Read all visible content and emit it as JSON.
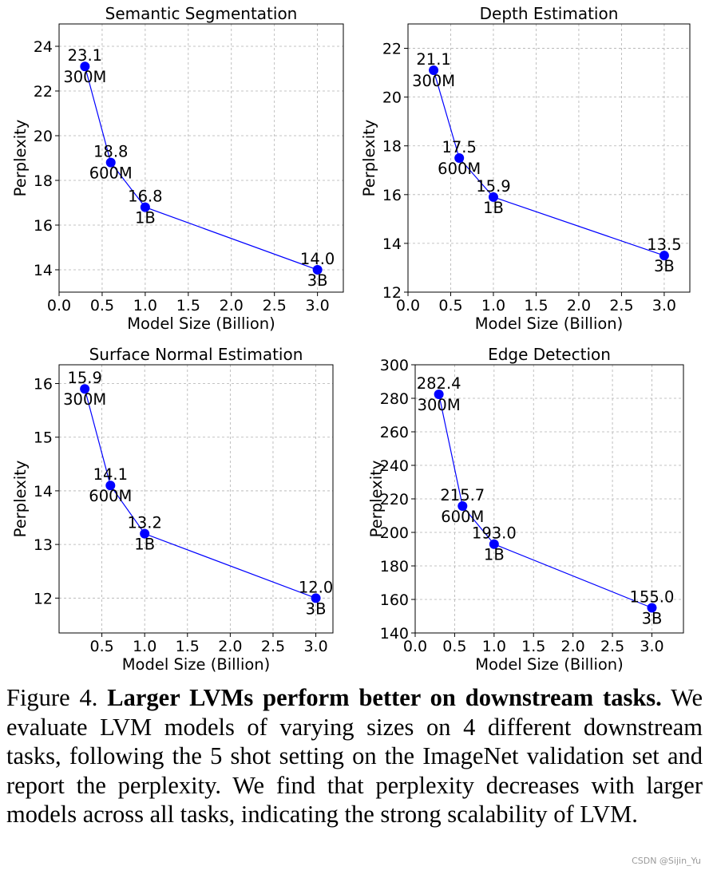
{
  "chart_data": [
    {
      "type": "line",
      "title": "Semantic Segmentation",
      "xlabel": "Model Size (Billion)",
      "ylabel": "Perplexity",
      "x": [
        0.3,
        0.6,
        1.0,
        3.0
      ],
      "values": [
        23.1,
        18.8,
        16.8,
        14.0
      ],
      "value_labels": [
        "23.1",
        "18.8",
        "16.8",
        "14.0"
      ],
      "point_labels": [
        "300M",
        "600M",
        "1B",
        "3B"
      ],
      "xlim": [
        0.0,
        3.3
      ],
      "ylim": [
        13.0,
        25.0
      ],
      "xticks": [
        "0.0",
        "0.5",
        "1.0",
        "1.5",
        "2.0",
        "2.5",
        "3.0"
      ],
      "yticks": [
        "14",
        "16",
        "18",
        "20",
        "22",
        "24"
      ],
      "grid": true
    },
    {
      "type": "line",
      "title": "Depth Estimation",
      "xlabel": "Model Size (Billion)",
      "ylabel": "Perplexity",
      "x": [
        0.3,
        0.6,
        1.0,
        3.0
      ],
      "values": [
        21.1,
        17.5,
        15.9,
        13.5
      ],
      "value_labels": [
        "21.1",
        "17.5",
        "15.9",
        "13.5"
      ],
      "point_labels": [
        "300M",
        "600M",
        "1B",
        "3B"
      ],
      "xlim": [
        0.0,
        3.3
      ],
      "ylim": [
        12.0,
        23.0
      ],
      "xticks": [
        "0.0",
        "0.5",
        "1.0",
        "1.5",
        "2.0",
        "2.5",
        "3.0"
      ],
      "yticks": [
        "12",
        "14",
        "16",
        "18",
        "20",
        "22"
      ],
      "grid": true
    },
    {
      "type": "line",
      "title": "Surface Normal Estimation",
      "xlabel": "Model Size (Billion)",
      "ylabel": "Perplexity",
      "x": [
        0.3,
        0.6,
        1.0,
        3.0
      ],
      "values": [
        15.9,
        14.1,
        13.2,
        12.0
      ],
      "value_labels": [
        "15.9",
        "14.1",
        "13.2",
        "12.0"
      ],
      "point_labels": [
        "300M",
        "600M",
        "1B",
        "3B"
      ],
      "xlim": [
        0.0,
        3.2
      ],
      "ylim": [
        11.35,
        16.35
      ],
      "xticks": [
        "0.5",
        "1.0",
        "1.5",
        "2.0",
        "2.5",
        "3.0"
      ],
      "yticks": [
        "12",
        "13",
        "14",
        "15",
        "16"
      ],
      "grid": true
    },
    {
      "type": "line",
      "title": "Edge Detection",
      "xlabel": "Model Size (Billion)",
      "ylabel": "Perplexity",
      "x": [
        0.3,
        0.6,
        1.0,
        3.0
      ],
      "values": [
        282.4,
        215.7,
        193.0,
        155.0
      ],
      "value_labels": [
        "282.4",
        "215.7",
        "193.0",
        "155.0"
      ],
      "point_labels": [
        "300M",
        "600M",
        "1B",
        "3B"
      ],
      "xlim": [
        0.0,
        3.4
      ],
      "ylim": [
        140.0,
        300.0
      ],
      "xticks": [
        "0.0",
        "0.5",
        "1.0",
        "1.5",
        "2.0",
        "2.5",
        "3.0"
      ],
      "yticks": [
        "140",
        "160",
        "180",
        "200",
        "220",
        "240",
        "260",
        "280",
        "300"
      ],
      "grid": true
    }
  ],
  "caption": {
    "prefix": "Figure 4. ",
    "bold": "Larger LVMs perform better on downstream tasks.",
    "body": " We evaluate LVM models of varying sizes on 4 different down­stream tasks, following the 5 shot setting on the ImageNet valida­tion set and report the perplexity. We find that perplexity decreases with larger models across all tasks, indicating the strong scalability of LVM."
  },
  "watermark": "CSDN @Sijin_Yu",
  "colors": {
    "series": "#0000ff",
    "grid": "#b0b0b0",
    "axes": "#000000"
  }
}
